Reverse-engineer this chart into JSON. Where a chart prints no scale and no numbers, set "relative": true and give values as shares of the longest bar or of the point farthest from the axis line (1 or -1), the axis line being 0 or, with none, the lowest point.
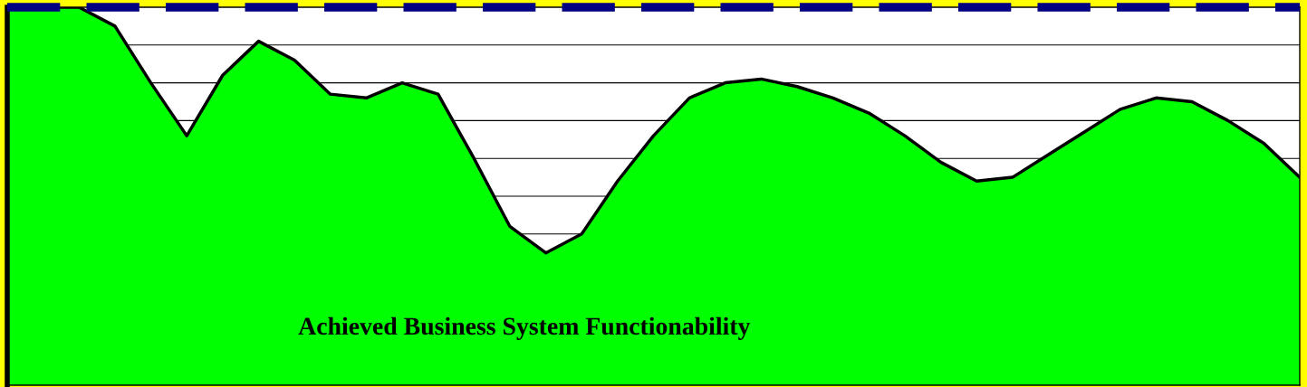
{
  "chart_data": {
    "type": "area",
    "relative": true,
    "categories": [
      null,
      null,
      null,
      null,
      null,
      null,
      null,
      null,
      null,
      null,
      null,
      null,
      null,
      null,
      null,
      null,
      null,
      null,
      null,
      null,
      null,
      null,
      null,
      null,
      null,
      null,
      null,
      null,
      null,
      null,
      null,
      null,
      null,
      null,
      null,
      null,
      null
    ],
    "series": [
      {
        "color": "#00ff00",
        "values": [
          1.0,
          1.0,
          1.0,
          0.95,
          0.8,
          0.66,
          0.82,
          0.91,
          0.86,
          0.77,
          0.76,
          0.8,
          0.77,
          0.6,
          0.42,
          0.35,
          0.4,
          0.54,
          0.66,
          0.76,
          0.8,
          0.81,
          0.79,
          0.76,
          0.72,
          0.66,
          0.59,
          0.54,
          0.55,
          0.61,
          0.67,
          0.73,
          0.76,
          0.75,
          0.7,
          0.64,
          0.55
        ]
      }
    ],
    "ref_lines": [
      {
        "axis": "y",
        "value": 1,
        "color": "#000080",
        "line_style": "dashed"
      }
    ],
    "annotations": [
      "Achieved Business System Functionability"
    ],
    "grid": "y",
    "legend": false,
    "tick_labels": false
  }
}
